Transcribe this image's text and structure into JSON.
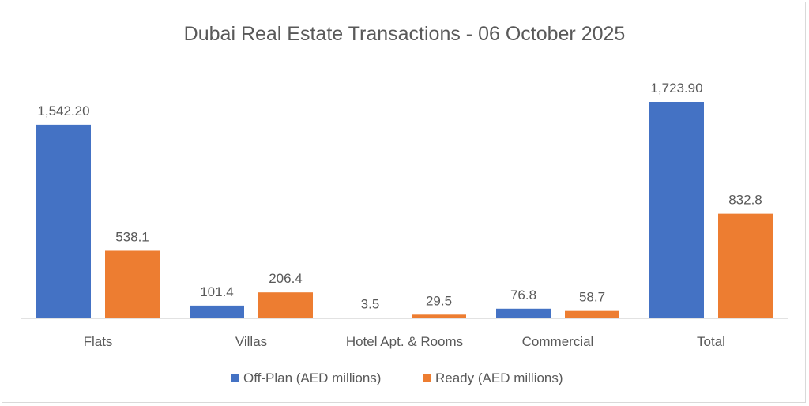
{
  "chart_data": {
    "type": "bar",
    "title": "Dubai Real Estate Transactions - 06 October 2025",
    "categories": [
      "Flats",
      "Villas",
      "Hotel Apt. & Rooms",
      "Commercial",
      "Total"
    ],
    "series": [
      {
        "name": "Off-Plan (AED millions)",
        "color": "#4472C4",
        "values": [
          1542.2,
          101.4,
          3.5,
          76.8,
          1723.9
        ],
        "labels": [
          "1,542.20",
          "101.4",
          "3.5",
          "76.8",
          "1,723.90"
        ]
      },
      {
        "name": "Ready (AED millions)",
        "color": "#ED7D31",
        "values": [
          538.1,
          206.4,
          29.5,
          58.7,
          832.8
        ],
        "labels": [
          "538.1",
          "206.4",
          "29.5",
          "58.7",
          "832.8"
        ]
      }
    ],
    "xlabel": "",
    "ylabel": "",
    "ylim": [
      0,
      1800
    ],
    "grid": false,
    "legend": "bottom"
  }
}
